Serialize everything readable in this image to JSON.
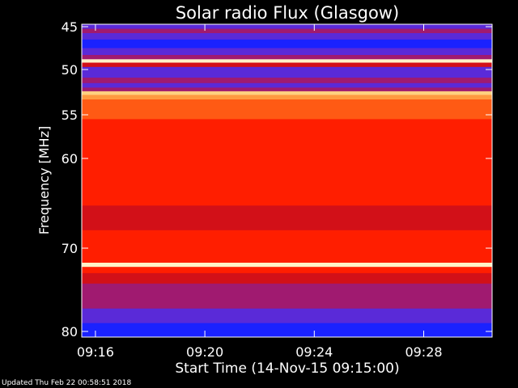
{
  "chart_data": {
    "type": "heatmap",
    "title": "Solar radio Flux (Glasgow)",
    "xlabel": "Start Time (14-Nov-15 09:15:00)",
    "ylabel": "Frequency [MHz]",
    "x_unit": "minutes after 09:15:00",
    "xlim": [
      0.5,
      15.5
    ],
    "ylim": [
      44.5,
      80
    ],
    "y_ticks": [
      {
        "value": 45,
        "label": "45"
      },
      {
        "value": 50,
        "label": "50"
      },
      {
        "value": 55,
        "label": "55"
      },
      {
        "value": 60,
        "label": "60"
      },
      {
        "value": 70,
        "label": "70"
      },
      {
        "value": 80,
        "label": "80"
      }
    ],
    "x_ticks": [
      {
        "value": 1,
        "label": "09:16"
      },
      {
        "value": 5,
        "label": "09:20"
      },
      {
        "value": 9,
        "label": "09:24"
      },
      {
        "value": 13,
        "label": "09:28"
      }
    ],
    "colorscale": [
      "#000050",
      "#0000cc",
      "#1a22ff",
      "#5a2ad8",
      "#a01a70",
      "#d21018",
      "#ff1e00",
      "#ff5a14",
      "#ff9a40",
      "#ffd080",
      "#fff2c8"
    ],
    "frequency_bands_mhz": [
      44.5,
      45,
      45.5,
      46,
      47,
      48,
      48.6,
      49,
      49.4,
      50,
      50.6,
      51.2,
      51.8,
      52.2,
      52.6,
      53,
      53.6,
      54.2,
      55,
      56,
      57,
      58,
      60,
      61.5,
      62.5,
      63.5,
      64.5,
      66,
      67.5,
      68.5,
      70,
      71,
      71.5,
      72,
      72.5,
      73.5,
      75,
      76.5,
      78,
      80
    ],
    "relative_intensity": [
      0.18,
      0.25,
      0.35,
      0.25,
      0.22,
      0.3,
      0.4,
      0.95,
      0.45,
      0.28,
      0.3,
      0.35,
      0.3,
      0.4,
      0.85,
      0.75,
      0.7,
      0.68,
      0.65,
      0.64,
      0.63,
      0.62,
      0.62,
      0.6,
      0.58,
      0.6,
      0.56,
      0.52,
      0.48,
      0.58,
      0.6,
      0.58,
      0.6,
      0.95,
      0.6,
      0.5,
      0.42,
      0.36,
      0.3,
      0.22
    ],
    "grid": false,
    "legend": false
  },
  "footer": "Updated Thu Feb 22 00:58:51 2018"
}
